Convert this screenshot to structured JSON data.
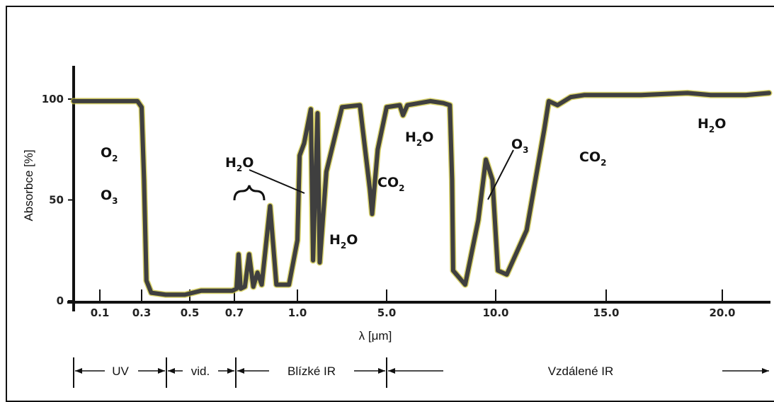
{
  "chart_data": {
    "type": "line",
    "xlabel": "λ [μm]",
    "ylabel": "Absorbce [%]",
    "ylim": [
      0,
      100
    ],
    "y_ticks": [
      "0",
      "50",
      "100"
    ],
    "x_ticks": [
      "0.1",
      "0.3",
      "0.5",
      "0.7",
      "1.0",
      "5.0",
      "10.0",
      "15.0",
      "20.0"
    ],
    "grid": false,
    "series": [
      {
        "points": [
          [
            0.0,
            99
          ],
          [
            0.28,
            99
          ],
          [
            0.3,
            96
          ],
          [
            0.31,
            60
          ],
          [
            0.32,
            10
          ],
          [
            0.34,
            4
          ],
          [
            0.4,
            3
          ],
          [
            0.48,
            3
          ],
          [
            0.55,
            5
          ],
          [
            0.6,
            5
          ],
          [
            0.69,
            5
          ],
          [
            0.71,
            6
          ],
          [
            0.72,
            23
          ],
          [
            0.73,
            6
          ],
          [
            0.75,
            7
          ],
          [
            0.77,
            23
          ],
          [
            0.79,
            7
          ],
          [
            0.81,
            14
          ],
          [
            0.83,
            8
          ],
          [
            0.87,
            47
          ],
          [
            0.9,
            8
          ],
          [
            0.96,
            8
          ],
          [
            1.0,
            30
          ],
          [
            1.1,
            72
          ],
          [
            1.3,
            78
          ],
          [
            1.6,
            95
          ],
          [
            1.7,
            20
          ],
          [
            1.9,
            93
          ],
          [
            2.0,
            19
          ],
          [
            2.3,
            64
          ],
          [
            3.0,
            96
          ],
          [
            3.8,
            97
          ],
          [
            4.25,
            55
          ],
          [
            4.35,
            43
          ],
          [
            4.6,
            75
          ],
          [
            5.0,
            96
          ],
          [
            5.6,
            97
          ],
          [
            5.75,
            92
          ],
          [
            5.95,
            97
          ],
          [
            7.0,
            99
          ],
          [
            7.6,
            98
          ],
          [
            7.9,
            97
          ],
          [
            8.0,
            60
          ],
          [
            8.05,
            15
          ],
          [
            8.6,
            8
          ],
          [
            9.2,
            40
          ],
          [
            9.55,
            70
          ],
          [
            9.85,
            60
          ],
          [
            10.1,
            15
          ],
          [
            10.5,
            13
          ],
          [
            11.4,
            35
          ],
          [
            12.2,
            85
          ],
          [
            12.4,
            99
          ],
          [
            12.8,
            97
          ],
          [
            13.4,
            101
          ],
          [
            14.0,
            102
          ],
          [
            16.5,
            102
          ],
          [
            18.5,
            103
          ],
          [
            19.5,
            102
          ],
          [
            21.0,
            102
          ],
          [
            22.0,
            103
          ]
        ]
      }
    ],
    "annotations": [
      {
        "main": "O",
        "sub": "2"
      },
      {
        "main": "O",
        "sub": "3"
      },
      {
        "main": "H",
        "sub": "2",
        "tail": "O"
      },
      {
        "main": "CO",
        "sub": "2"
      },
      {
        "main": "H",
        "sub": "2",
        "tail": "O"
      },
      {
        "main": "H",
        "sub": "2",
        "tail": "O"
      },
      {
        "main": "O",
        "sub": "3"
      },
      {
        "main": "CO",
        "sub": "2"
      },
      {
        "main": "H",
        "sub": "2",
        "tail": "O"
      }
    ],
    "regions": [
      "UV",
      "vid.",
      "Blízké IR",
      "Vzdálené IR"
    ]
  }
}
